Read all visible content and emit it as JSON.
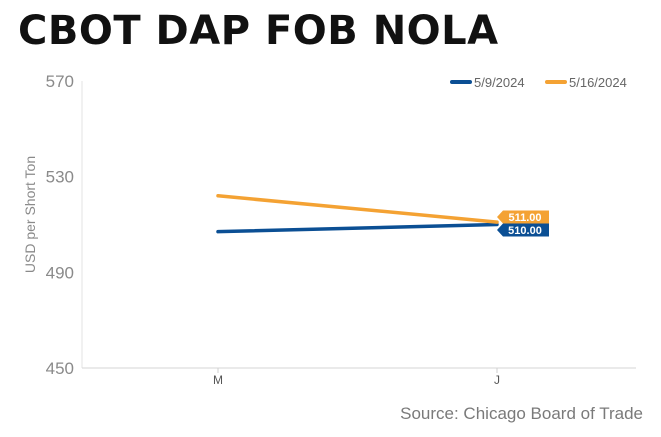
{
  "title": "CBOT DAP FOB NOLA",
  "source": "Source: Chicago Board of Trade",
  "colors": {
    "series_1": "#0b4f94",
    "series_2": "#f4a233"
  },
  "chart_data": {
    "type": "line",
    "title": "CBOT DAP FOB NOLA",
    "xlabel": "",
    "ylabel": "USD per Short Ton",
    "categories": [
      "M",
      "J"
    ],
    "ylim": [
      450,
      570
    ],
    "yticks": [
      450,
      490,
      530,
      570
    ],
    "grid": false,
    "legend_position": "top-right",
    "series": [
      {
        "name": "5/9/2024",
        "color": "#0b4f94",
        "values": [
          507,
          510
        ],
        "end_label": "510.00"
      },
      {
        "name": "5/16/2024",
        "color": "#f4a233",
        "values": [
          522,
          511
        ],
        "end_label": "511.00"
      }
    ]
  }
}
